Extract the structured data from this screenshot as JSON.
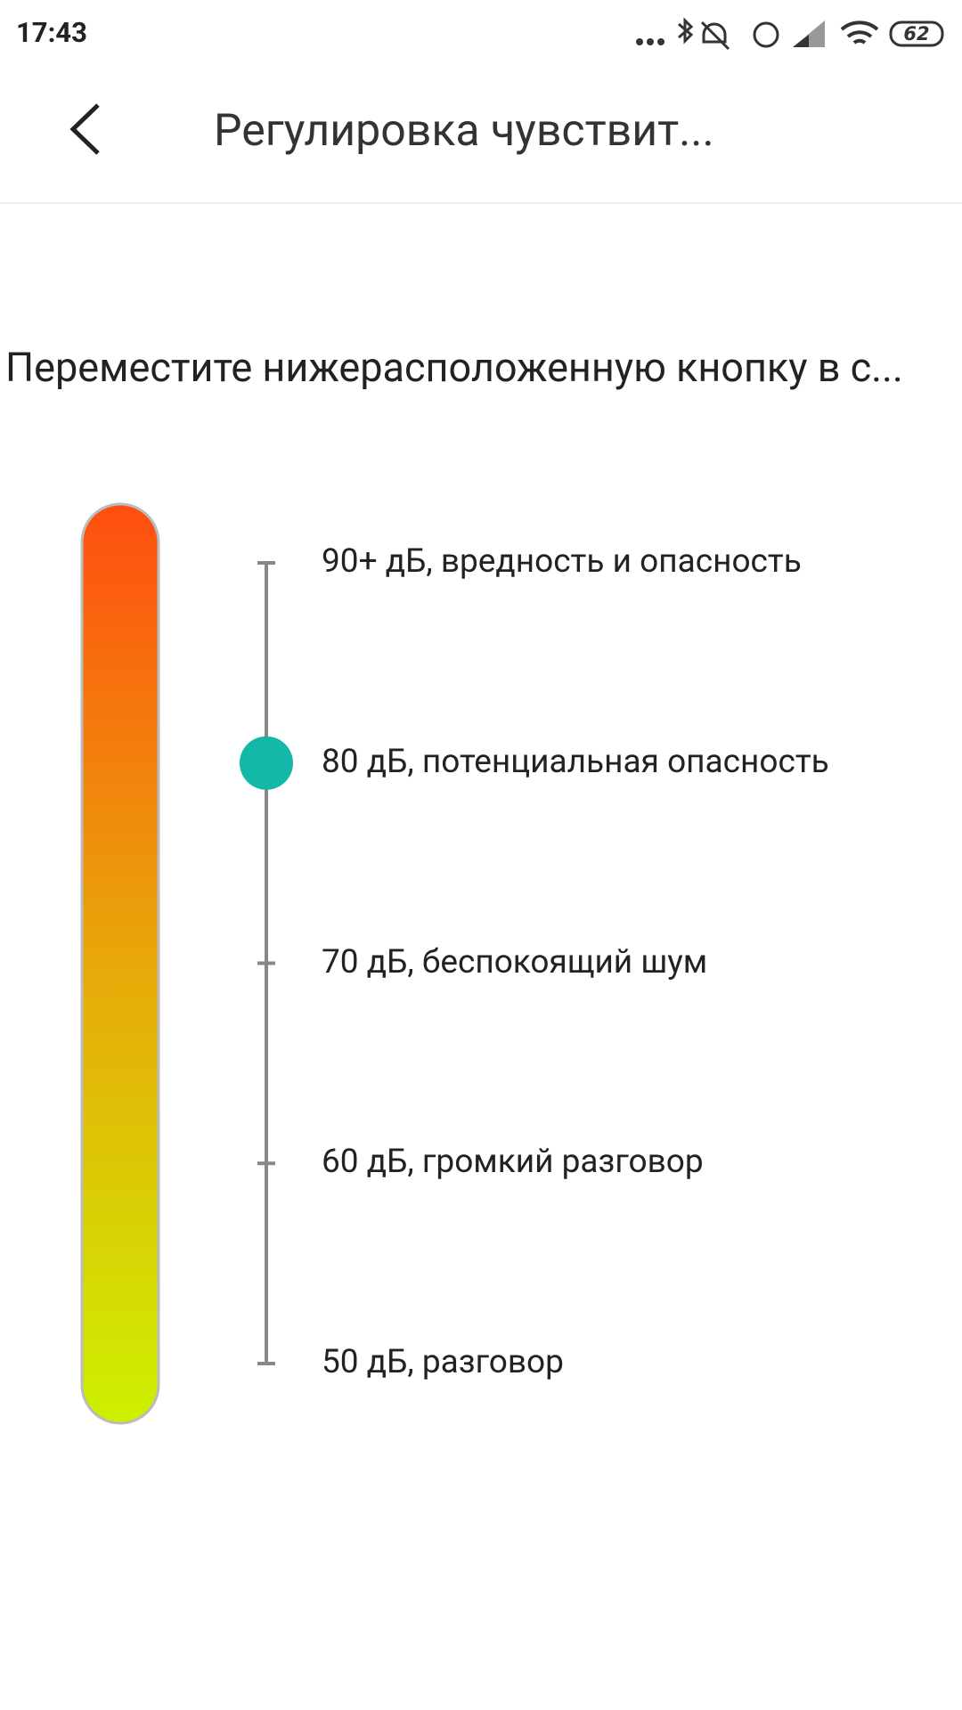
{
  "status_bar": {
    "time": "17:43",
    "battery": "62"
  },
  "header": {
    "title": "Регулировка чувствит..."
  },
  "instruction": "Переместите нижерасположенную кнопку в с...",
  "levels": [
    "90+ дБ, вредность и опасность",
    "80 дБ, потенциальная опасность",
    "70 дБ, беспокоящий шум",
    "60 дБ, громкий разговор",
    "50 дБ, разговор"
  ],
  "selected_index": 1
}
